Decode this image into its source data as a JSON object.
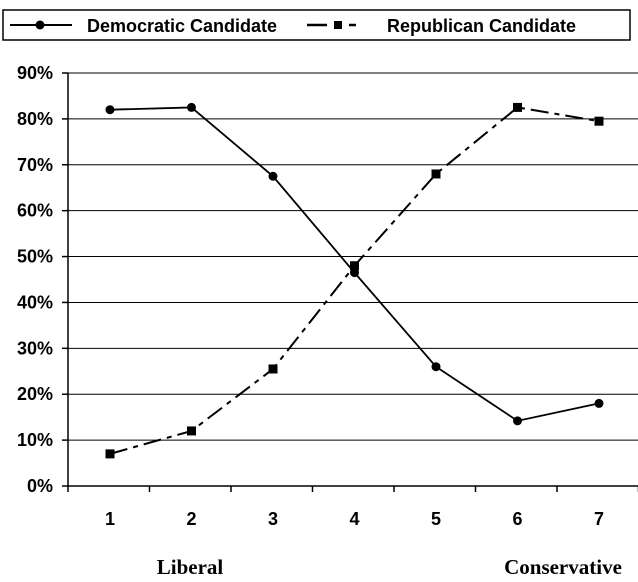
{
  "chart_data": {
    "type": "line",
    "categories": [
      "1",
      "2",
      "3",
      "4",
      "5",
      "6",
      "7"
    ],
    "series": [
      {
        "name": "Democratic Candidate",
        "values": [
          82,
          82.5,
          67.5,
          46.5,
          26,
          14.2,
          18
        ],
        "marker": "circle",
        "line_style": "solid",
        "color": "#000000"
      },
      {
        "name": "Republican Candidate",
        "values": [
          7,
          12,
          25.5,
          48,
          68,
          82.5,
          79.5
        ],
        "marker": "square",
        "line_style": "dash-dot",
        "color": "#000000"
      }
    ],
    "ylim": [
      0,
      90
    ],
    "yticks": [
      0,
      10,
      20,
      30,
      40,
      50,
      60,
      70,
      80,
      90
    ],
    "ytick_labels": [
      "0%",
      "10%",
      "20%",
      "30%",
      "40%",
      "50%",
      "60%",
      "70%",
      "80%",
      "90%"
    ],
    "grid": "horizontal",
    "legend": "top",
    "scale_labels": {
      "left": "Liberal",
      "right": "Conservative"
    }
  }
}
